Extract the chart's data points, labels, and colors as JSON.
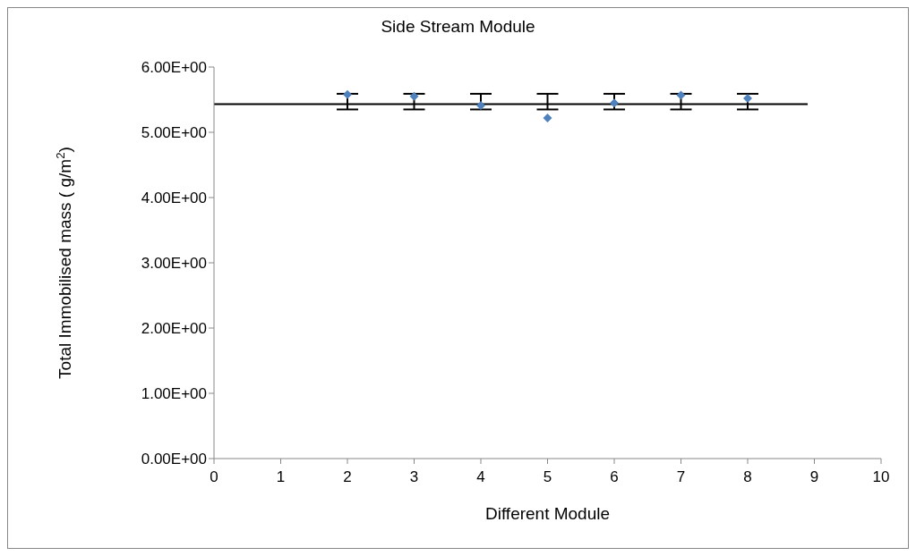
{
  "chart_data": {
    "type": "scatter",
    "title": "Side Stream Module",
    "xlabel": "Different Module",
    "ylabel": "Total  Immobilised  mass ( g/m$^{2}$)",
    "xlim": [
      0,
      10
    ],
    "xticks": [
      0,
      1,
      2,
      3,
      4,
      5,
      6,
      7,
      8,
      9,
      10
    ],
    "ylim": [
      0,
      6
    ],
    "yticks": [
      {
        "value": 0,
        "label": "0.00E+00"
      },
      {
        "value": 1,
        "label": "1.00E+00"
      },
      {
        "value": 2,
        "label": "2.00E+00"
      },
      {
        "value": 3,
        "label": "3.00E+00"
      },
      {
        "value": 4,
        "label": "4.00E+00"
      },
      {
        "value": 5,
        "label": "5.00E+00"
      },
      {
        "value": 6,
        "label": "6.00E+00"
      }
    ],
    "grid": false,
    "legend": false,
    "series": [
      {
        "color": "#4f81bd",
        "marker": "diamond",
        "x": [
          2,
          3,
          4,
          5,
          6,
          7,
          8
        ],
        "values": [
          5.58,
          5.55,
          5.41,
          5.22,
          5.45,
          5.57,
          5.52
        ]
      },
      {
        "type": "line",
        "color": "#000000",
        "marker": "none",
        "line_style": "solid",
        "x": [
          0,
          2,
          3,
          4,
          5,
          6,
          7,
          8,
          8.9
        ],
        "values": [
          5.43,
          5.43,
          5.43,
          5.43,
          5.43,
          5.43,
          5.43,
          5.43,
          5.43
        ],
        "errors": [
          null,
          [
            5.35,
            5.59
          ],
          [
            5.35,
            5.59
          ],
          [
            5.35,
            5.59
          ],
          [
            5.35,
            5.59
          ],
          [
            5.35,
            5.59
          ],
          [
            5.35,
            5.59
          ],
          [
            5.35,
            5.59
          ],
          null
        ]
      }
    ]
  }
}
